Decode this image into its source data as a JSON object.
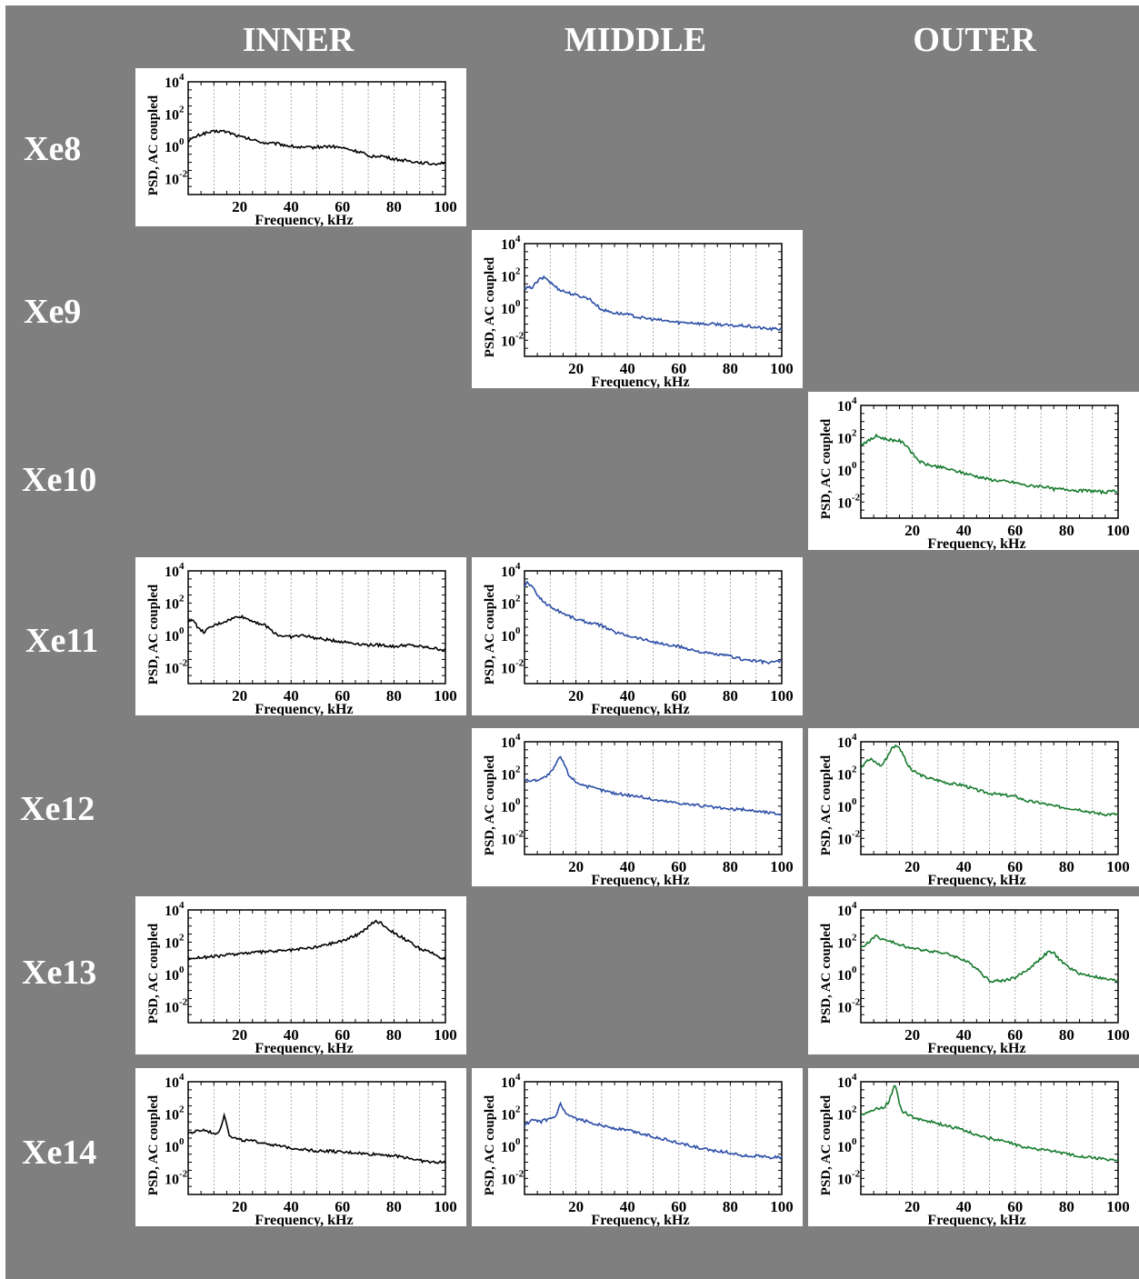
{
  "columns": [
    "INNER",
    "MIDDLE",
    "OUTER"
  ],
  "rows": [
    "Xe8",
    "Xe9",
    "Xe10",
    "Xe11",
    "Xe12",
    "Xe13",
    "Xe14"
  ],
  "colors": {
    "INNER": "#000000",
    "MIDDLE": "#2b4ea6",
    "OUTER": "#157a2c"
  },
  "axis": {
    "xlabel": "Frequency, kHz",
    "ylabel": "PSD, AC coupled",
    "xticks": [
      "20",
      "40",
      "60",
      "80",
      "100"
    ],
    "yticks": [
      {
        "base": "10",
        "exp": "4"
      },
      {
        "base": "10",
        "exp": "2"
      },
      {
        "base": "10",
        "exp": "0"
      },
      {
        "base": "10",
        "exp": "-2"
      }
    ]
  },
  "chart_data": [
    {
      "type": "line",
      "row": "Xe8",
      "column": "INNER",
      "scale": "log-y",
      "xlim": [
        0,
        100
      ],
      "ylim_exp": [
        -3,
        4
      ],
      "grid": "vertical-dashed",
      "x": [
        0,
        3,
        6,
        10,
        13,
        16,
        20,
        25,
        30,
        35,
        40,
        45,
        50,
        55,
        60,
        65,
        68,
        70,
        72,
        75,
        80,
        85,
        90,
        95,
        100
      ],
      "log10_y": [
        0.3,
        0.6,
        0.8,
        0.9,
        0.95,
        0.85,
        0.6,
        0.4,
        0.2,
        0.15,
        0.0,
        -0.1,
        -0.05,
        0.0,
        -0.1,
        -0.3,
        -0.4,
        -0.7,
        -0.6,
        -0.6,
        -0.8,
        -0.9,
        -1.0,
        -1.1,
        -1.0
      ]
    },
    {
      "type": "line",
      "row": "Xe9",
      "column": "MIDDLE",
      "scale": "log-y",
      "xlim": [
        0,
        100
      ],
      "ylim_exp": [
        -3,
        4
      ],
      "grid": "vertical-dashed",
      "x": [
        0,
        3,
        6,
        8,
        10,
        13,
        16,
        20,
        25,
        30,
        35,
        40,
        45,
        50,
        55,
        60,
        65,
        70,
        75,
        80,
        85,
        90,
        95,
        100
      ],
      "log10_y": [
        1.2,
        1.3,
        1.8,
        1.9,
        1.6,
        1.2,
        1.0,
        0.8,
        0.6,
        -0.1,
        -0.3,
        -0.4,
        -0.6,
        -0.7,
        -0.8,
        -0.9,
        -0.9,
        -1.0,
        -1.0,
        -1.1,
        -1.1,
        -1.2,
        -1.3,
        -1.3
      ]
    },
    {
      "type": "line",
      "row": "Xe10",
      "column": "OUTER",
      "scale": "log-y",
      "xlim": [
        0,
        100
      ],
      "ylim_exp": [
        -3,
        4
      ],
      "grid": "vertical-dashed",
      "x": [
        0,
        3,
        6,
        10,
        15,
        18,
        20,
        23,
        26,
        30,
        35,
        40,
        45,
        50,
        55,
        60,
        65,
        70,
        75,
        80,
        85,
        90,
        95,
        100
      ],
      "log10_y": [
        1.6,
        1.8,
        2.1,
        1.9,
        1.8,
        1.5,
        1.0,
        0.5,
        0.3,
        0.2,
        0.0,
        -0.2,
        -0.4,
        -0.6,
        -0.7,
        -0.8,
        -1.0,
        -1.0,
        -1.2,
        -1.2,
        -1.3,
        -1.3,
        -1.4,
        -1.3
      ]
    },
    {
      "type": "line",
      "row": "Xe11",
      "column": "INNER",
      "scale": "log-y",
      "xlim": [
        0,
        100
      ],
      "ylim_exp": [
        -3,
        4
      ],
      "grid": "vertical-dashed",
      "x": [
        0,
        2,
        4,
        6,
        10,
        15,
        20,
        25,
        30,
        35,
        40,
        45,
        50,
        55,
        60,
        65,
        70,
        75,
        80,
        85,
        90,
        95,
        100
      ],
      "log10_y": [
        0.8,
        1.0,
        0.4,
        0.2,
        0.6,
        0.9,
        1.2,
        0.9,
        0.6,
        0.0,
        -0.1,
        0.0,
        -0.2,
        -0.3,
        -0.4,
        -0.5,
        -0.6,
        -0.6,
        -0.7,
        -0.6,
        -0.7,
        -0.8,
        -0.9
      ]
    },
    {
      "type": "line",
      "row": "Xe11",
      "column": "MIDDLE",
      "scale": "log-y",
      "xlim": [
        0,
        100
      ],
      "ylim_exp": [
        -3,
        4
      ],
      "grid": "vertical-dashed",
      "x": [
        0,
        1,
        3,
        5,
        8,
        12,
        16,
        20,
        25,
        30,
        35,
        40,
        45,
        50,
        55,
        60,
        65,
        70,
        75,
        80,
        85,
        90,
        95,
        100
      ],
      "log10_y": [
        3.0,
        3.3,
        3.0,
        2.5,
        2.0,
        1.6,
        1.3,
        1.0,
        0.8,
        0.6,
        0.2,
        0.0,
        -0.2,
        -0.4,
        -0.6,
        -0.7,
        -0.9,
        -1.1,
        -1.2,
        -1.3,
        -1.5,
        -1.6,
        -1.7,
        -1.6
      ]
    },
    {
      "type": "line",
      "row": "Xe12",
      "column": "MIDDLE",
      "scale": "log-y",
      "xlim": [
        0,
        100
      ],
      "ylim_exp": [
        -3,
        4
      ],
      "grid": "vertical-dashed",
      "x": [
        0,
        4,
        8,
        11,
        13,
        14,
        15,
        17,
        20,
        25,
        30,
        35,
        40,
        45,
        50,
        55,
        60,
        65,
        70,
        75,
        80,
        85,
        90,
        95,
        100
      ],
      "log10_y": [
        1.6,
        1.6,
        1.8,
        2.2,
        2.9,
        3.0,
        2.8,
        2.0,
        1.5,
        1.2,
        1.0,
        0.8,
        0.7,
        0.6,
        0.4,
        0.3,
        0.2,
        0.1,
        0.0,
        -0.1,
        -0.2,
        -0.2,
        -0.3,
        -0.4,
        -0.5
      ]
    },
    {
      "type": "line",
      "row": "Xe12",
      "column": "OUTER",
      "scale": "log-y",
      "xlim": [
        0,
        100
      ],
      "ylim_exp": [
        -3,
        4
      ],
      "grid": "vertical-dashed",
      "x": [
        0,
        2,
        4,
        6,
        8,
        10,
        12,
        14,
        16,
        18,
        20,
        25,
        30,
        35,
        40,
        45,
        50,
        55,
        60,
        65,
        70,
        75,
        80,
        85,
        90,
        95,
        100
      ],
      "log10_y": [
        2.4,
        2.8,
        2.9,
        2.7,
        2.5,
        3.0,
        3.6,
        3.8,
        3.4,
        2.6,
        2.2,
        1.8,
        1.6,
        1.4,
        1.3,
        1.0,
        0.8,
        0.7,
        0.6,
        0.3,
        0.2,
        0.0,
        -0.1,
        -0.2,
        -0.4,
        -0.5,
        -0.5
      ]
    },
    {
      "type": "line",
      "row": "Xe13",
      "column": "INNER",
      "scale": "log-y",
      "xlim": [
        0,
        100
      ],
      "ylim_exp": [
        -3,
        4
      ],
      "grid": "vertical-dashed",
      "x": [
        0,
        10,
        20,
        30,
        40,
        50,
        55,
        60,
        65,
        68,
        71,
        73,
        75,
        78,
        82,
        86,
        90,
        95,
        100
      ],
      "log10_y": [
        1.0,
        1.1,
        1.3,
        1.4,
        1.5,
        1.7,
        1.9,
        2.1,
        2.4,
        2.7,
        3.1,
        3.3,
        3.2,
        2.8,
        2.4,
        2.0,
        1.6,
        1.3,
        0.9
      ]
    },
    {
      "type": "line",
      "row": "Xe13",
      "column": "OUTER",
      "scale": "log-y",
      "xlim": [
        0,
        100
      ],
      "ylim_exp": [
        -3,
        4
      ],
      "grid": "vertical-dashed",
      "x": [
        0,
        3,
        6,
        8,
        12,
        16,
        20,
        25,
        30,
        35,
        40,
        45,
        48,
        50,
        55,
        60,
        65,
        70,
        73,
        75,
        78,
        82,
        86,
        90,
        95,
        100
      ],
      "log10_y": [
        1.6,
        2.0,
        2.4,
        2.2,
        2.0,
        1.8,
        1.6,
        1.5,
        1.4,
        1.2,
        0.9,
        0.4,
        -0.1,
        -0.4,
        -0.4,
        -0.2,
        0.3,
        1.0,
        1.4,
        1.3,
        0.8,
        0.3,
        0.0,
        -0.1,
        -0.3,
        -0.4
      ]
    },
    {
      "type": "line",
      "row": "Xe14",
      "column": "INNER",
      "scale": "log-y",
      "xlim": [
        0,
        100
      ],
      "ylim_exp": [
        -3,
        4
      ],
      "grid": "vertical-dashed",
      "x": [
        0,
        3,
        6,
        10,
        12,
        13,
        14,
        15,
        16,
        18,
        20,
        25,
        30,
        35,
        40,
        45,
        50,
        55,
        60,
        65,
        70,
        75,
        80,
        85,
        90,
        95,
        100
      ],
      "log10_y": [
        0.8,
        0.9,
        1.0,
        0.8,
        0.9,
        1.4,
        1.9,
        1.4,
        0.7,
        0.5,
        0.4,
        0.3,
        0.2,
        0.0,
        -0.1,
        -0.2,
        -0.3,
        -0.3,
        -0.4,
        -0.4,
        -0.5,
        -0.5,
        -0.6,
        -0.7,
        -0.9,
        -1.0,
        -1.0
      ]
    },
    {
      "type": "line",
      "row": "Xe14",
      "column": "MIDDLE",
      "scale": "log-y",
      "xlim": [
        0,
        100
      ],
      "ylim_exp": [
        -3,
        4
      ],
      "grid": "vertical-dashed",
      "x": [
        0,
        3,
        6,
        10,
        12,
        13,
        14,
        15,
        16,
        18,
        20,
        25,
        30,
        35,
        40,
        45,
        50,
        55,
        60,
        65,
        70,
        75,
        80,
        85,
        90,
        95,
        100
      ],
      "log10_y": [
        1.3,
        1.6,
        1.5,
        1.7,
        1.8,
        2.2,
        2.6,
        2.3,
        2.0,
        1.8,
        1.7,
        1.5,
        1.3,
        1.1,
        1.0,
        0.8,
        0.6,
        0.4,
        0.2,
        0.0,
        -0.2,
        -0.3,
        -0.4,
        -0.6,
        -0.6,
        -0.7,
        -0.7
      ]
    },
    {
      "type": "line",
      "row": "Xe14",
      "column": "OUTER",
      "scale": "log-y",
      "xlim": [
        0,
        100
      ],
      "ylim_exp": [
        -3,
        4
      ],
      "grid": "vertical-dashed",
      "x": [
        0,
        3,
        6,
        9,
        11,
        12,
        13,
        14,
        15,
        16,
        18,
        20,
        25,
        30,
        35,
        40,
        45,
        50,
        55,
        60,
        65,
        70,
        75,
        80,
        85,
        90,
        95,
        100
      ],
      "log10_y": [
        2.0,
        2.1,
        2.3,
        2.4,
        2.8,
        3.3,
        3.8,
        3.5,
        2.6,
        2.2,
        2.0,
        1.8,
        1.6,
        1.4,
        1.2,
        1.0,
        0.7,
        0.5,
        0.3,
        0.1,
        -0.1,
        -0.2,
        -0.3,
        -0.5,
        -0.6,
        -0.7,
        -0.8,
        -0.9
      ]
    }
  ]
}
